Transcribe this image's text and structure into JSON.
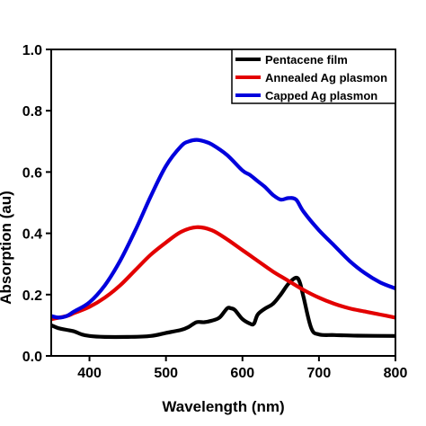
{
  "chart_data": {
    "type": "line",
    "xlabel": "Wavelength (nm)",
    "ylabel": "Absorption (au)",
    "xlim": [
      350,
      800
    ],
    "ylim": [
      0,
      1.0
    ],
    "xticks": [
      400,
      500,
      600,
      700,
      800
    ],
    "yticks": [
      0.0,
      0.2,
      0.4,
      0.6,
      0.8,
      1.0
    ],
    "ytick_labels": [
      "0.0",
      "0.2",
      "0.4",
      "0.6",
      "0.8",
      "1.0"
    ],
    "grid": false,
    "legend_position": "top-right",
    "series": [
      {
        "name": "Pentacene film",
        "color": "#000000",
        "x": [
          350,
          360,
          370,
          380,
          390,
          400,
          420,
          450,
          480,
          500,
          520,
          530,
          540,
          550,
          560,
          570,
          580,
          585,
          590,
          600,
          610,
          615,
          620,
          630,
          640,
          650,
          660,
          670,
          675,
          680,
          690,
          700,
          720,
          750,
          800
        ],
        "y": [
          0.1,
          0.09,
          0.085,
          0.08,
          0.07,
          0.065,
          0.062,
          0.062,
          0.065,
          0.075,
          0.085,
          0.095,
          0.11,
          0.11,
          0.115,
          0.125,
          0.155,
          0.155,
          0.15,
          0.12,
          0.105,
          0.105,
          0.135,
          0.155,
          0.17,
          0.2,
          0.235,
          0.255,
          0.24,
          0.19,
          0.09,
          0.07,
          0.068,
          0.066,
          0.065
        ]
      },
      {
        "name": "Annealed Ag plasmon",
        "color": "#e30000",
        "x": [
          350,
          370,
          380,
          400,
          420,
          440,
          460,
          480,
          500,
          520,
          540,
          560,
          580,
          600,
          620,
          640,
          660,
          680,
          700,
          720,
          740,
          760,
          780,
          800
        ],
        "y": [
          0.12,
          0.13,
          0.14,
          0.16,
          0.19,
          0.23,
          0.28,
          0.33,
          0.37,
          0.405,
          0.42,
          0.41,
          0.38,
          0.345,
          0.31,
          0.275,
          0.245,
          0.215,
          0.19,
          0.17,
          0.155,
          0.145,
          0.135,
          0.125
        ]
      },
      {
        "name": "Capped Ag plasmon",
        "color": "#0000dd",
        "x": [
          350,
          360,
          370,
          380,
          400,
          420,
          440,
          460,
          480,
          500,
          520,
          530,
          540,
          550,
          560,
          580,
          600,
          610,
          620,
          630,
          640,
          650,
          660,
          670,
          680,
          700,
          720,
          740,
          760,
          780,
          800
        ],
        "y": [
          0.13,
          0.125,
          0.13,
          0.145,
          0.175,
          0.23,
          0.31,
          0.41,
          0.52,
          0.62,
          0.685,
          0.7,
          0.705,
          0.7,
          0.69,
          0.655,
          0.605,
          0.59,
          0.57,
          0.55,
          0.525,
          0.51,
          0.515,
          0.51,
          0.47,
          0.41,
          0.36,
          0.31,
          0.27,
          0.24,
          0.22
        ]
      }
    ]
  }
}
